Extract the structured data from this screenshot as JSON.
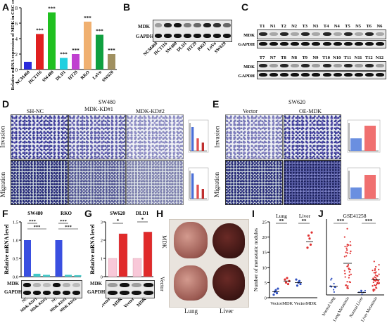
{
  "panels": {
    "A": {
      "label": "A",
      "ylabel": "Relative mRNA expression of MDK in CRC cell lines",
      "categories": [
        "NCM460",
        "HCT116",
        "SW480",
        "DLD1",
        "HT29",
        "RKO",
        "LoVo",
        "SW620"
      ],
      "colors": [
        "#2b2bdc",
        "#e02020",
        "#20c020",
        "#20d0e0",
        "#c040d0",
        "#f0b070",
        "#10a040",
        "#a09060"
      ],
      "sig": [
        "",
        "***",
        "***",
        "***",
        "***",
        "***",
        "***",
        "***"
      ]
    },
    "B": {
      "label": "B",
      "rows": [
        "MDK",
        "GAPDH"
      ],
      "lanes": [
        "NCM460",
        "HCT116",
        "SW480",
        "DLD1",
        "HT29",
        "RKO",
        "LoVo",
        "SW620"
      ]
    },
    "C": {
      "label": "C",
      "top_lanes": [
        "T1",
        "N1",
        "T2",
        "N2",
        "T3",
        "N3",
        "T4",
        "N4",
        "T5",
        "N5",
        "T6",
        "N6"
      ],
      "bottom_lanes": [
        "T7",
        "N7",
        "T8",
        "N8",
        "T9",
        "N9",
        "T10",
        "N10",
        "T11",
        "N11",
        "T12",
        "N12"
      ],
      "rows": [
        "MDK",
        "GAPDH"
      ]
    },
    "D": {
      "label": "D",
      "header_group": "SW480",
      "columns": [
        "SH-NC",
        "MDK-KD#1",
        "MDK-KD#2"
      ],
      "rows": [
        "Invasion",
        "Migration"
      ]
    },
    "E": {
      "label": "E",
      "header_group": "SW620",
      "columns": [
        "Vector",
        "OE-MDK"
      ],
      "rows": [
        "Invasion",
        "Migration"
      ]
    },
    "F": {
      "label": "F",
      "groups": [
        "SW480",
        "RKO"
      ],
      "ylabel": "Relative mRNA level",
      "sig": [
        "***",
        "***",
        "***",
        "***"
      ],
      "blot_rows": [
        "MDK",
        "GAPDH"
      ],
      "lane_labels": [
        "NC",
        "MDK-KD#1",
        "MDK-KD#2",
        "NC",
        "MDK-KD#1",
        "MDK-KD#2"
      ]
    },
    "G": {
      "label": "G",
      "groups": [
        "SW620",
        "DLD1"
      ],
      "ylabel": "Relative mRNA level",
      "sig": [
        "*",
        "*"
      ],
      "blot_rows": [
        "MDK",
        "GAPDH"
      ],
      "lane_labels": [
        "Vector",
        "MDK",
        "Vector",
        "MDK"
      ]
    },
    "H": {
      "label": "H",
      "row_labels": [
        "MDK",
        "Vector"
      ],
      "col_labels": [
        "Lung",
        "Liver"
      ]
    },
    "I": {
      "label": "I",
      "ylabel": "Number of metastatic nodules",
      "groups": [
        "Lung",
        "Liver"
      ],
      "xlabel": "VectorMDK VectorMDK",
      "sig": [
        "**",
        "**"
      ]
    },
    "J": {
      "label": "J",
      "dataset": "GSE41258",
      "categories": [
        "Normal lung",
        "Lung Metastasis",
        "Normal Liver",
        "Liver Metastasis"
      ],
      "sig": [
        "***",
        "***"
      ]
    }
  },
  "chart_data": [
    {
      "type": "bar",
      "panel": "A",
      "categories": [
        "NCM460",
        "HCT116",
        "SW480",
        "DLD1",
        "HT29",
        "RKO",
        "LoVo",
        "SW620"
      ],
      "values": [
        1.0,
        4.6,
        7.4,
        1.5,
        2.0,
        6.2,
        4.5,
        2.0
      ],
      "ylim": [
        0,
        8
      ],
      "yticks": [
        0,
        2,
        4,
        6,
        8
      ],
      "ylabel": "Relative mRNA expression of MDK in CRC cell lines"
    },
    {
      "type": "bar",
      "panel": "F",
      "categories": [
        "NC",
        "MDK-KD#1",
        "MDK-KD#2",
        "NC",
        "MDK-KD#1",
        "MDK-KD#2"
      ],
      "values": [
        1.0,
        0.08,
        0.05,
        1.0,
        0.05,
        0.04
      ],
      "ylim": [
        0,
        1.5
      ],
      "yticks": [
        0.0,
        0.5,
        1.0,
        1.5
      ],
      "ylabel": "Relative mRNA level"
    },
    {
      "type": "bar",
      "panel": "G",
      "categories": [
        "Vector",
        "MDK",
        "Vector",
        "MDK"
      ],
      "values": [
        1.0,
        2.35,
        1.0,
        2.45
      ],
      "ylim": [
        0,
        3
      ],
      "yticks": [
        0,
        1,
        2,
        3
      ],
      "ylabel": "Relative mRNA level"
    },
    {
      "type": "scatter",
      "panel": "I",
      "categories": [
        "Vector",
        "MDK",
        "Vector",
        "MDK"
      ],
      "values": [
        2.0,
        5.5,
        5.0,
        18.5
      ],
      "ylim": [
        0,
        25
      ],
      "yticks": [
        0,
        5,
        10,
        15,
        20,
        25
      ],
      "ylabel": "Number of metastatic nodules"
    },
    {
      "type": "scatter",
      "panel": "J",
      "categories": [
        "Normal lung",
        "Lung Metastasis",
        "Normal Liver",
        "Liver Metastasis"
      ],
      "values": [
        7,
        25,
        2,
        12
      ],
      "ylim": [
        0,
        60
      ]
    }
  ]
}
